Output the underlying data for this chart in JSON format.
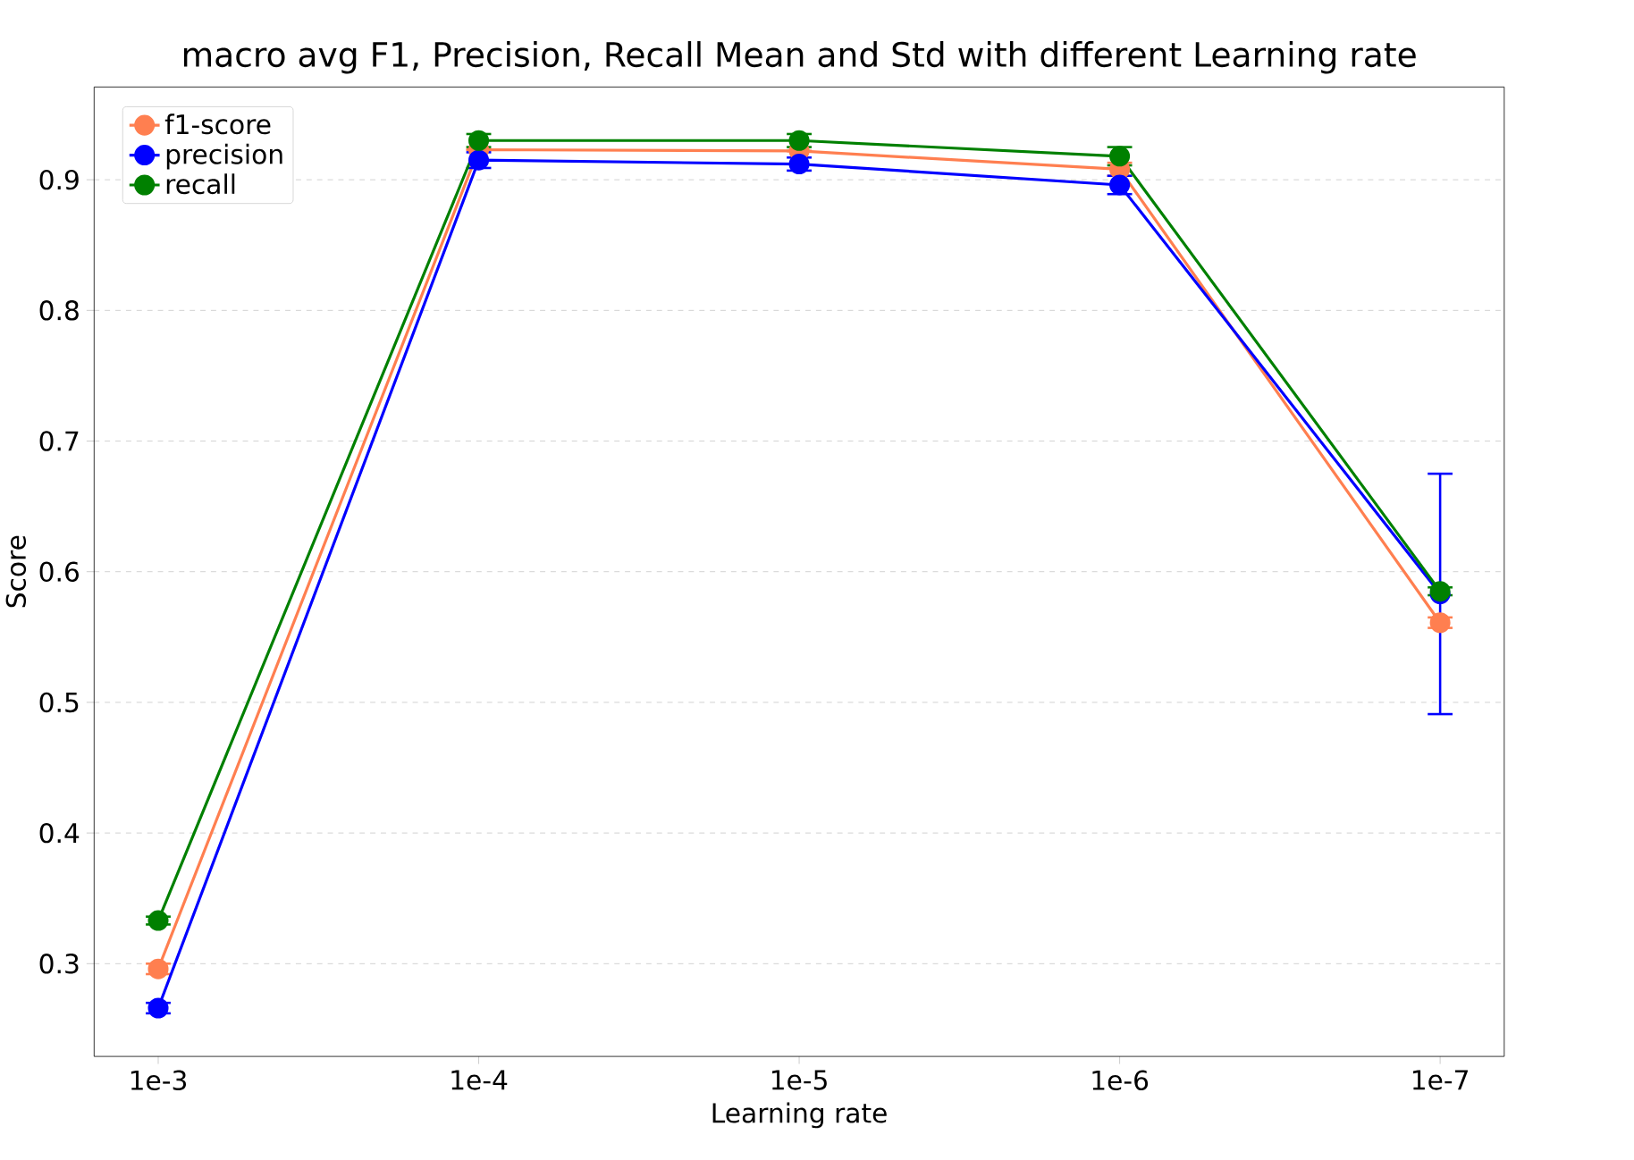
{
  "chart_data": {
    "type": "line",
    "title": "macro avg F1, Precision, Recall Mean and Std with different Learning rate",
    "xlabel": "Learning rate",
    "ylabel": "Score",
    "categories": [
      "1e-3",
      "1e-4",
      "1e-5",
      "1e-6",
      "1e-7"
    ],
    "series": [
      {
        "name": "f1-score",
        "color": "#ff7f50",
        "values": [
          0.296,
          0.923,
          0.922,
          0.908,
          0.561
        ],
        "errors": [
          0.004,
          null,
          null,
          0.005,
          0.004
        ]
      },
      {
        "name": "precision",
        "color": "#0000ff",
        "values": [
          0.266,
          0.915,
          0.912,
          0.896,
          0.583
        ],
        "errors": [
          0.004,
          0.006,
          0.005,
          0.007,
          0.092
        ]
      },
      {
        "name": "recall",
        "color": "#008000",
        "values": [
          0.333,
          0.93,
          0.93,
          0.918,
          0.585
        ],
        "errors": [
          0.003,
          0.005,
          0.005,
          0.007,
          0.003
        ]
      }
    ],
    "ylim": [
      0.229,
      0.971
    ],
    "yticks": [
      0.3,
      0.4,
      0.5,
      0.6,
      0.7,
      0.8,
      0.9
    ],
    "grid": "y",
    "legend": "top left",
    "marker": "circle",
    "line_style": "solid"
  }
}
